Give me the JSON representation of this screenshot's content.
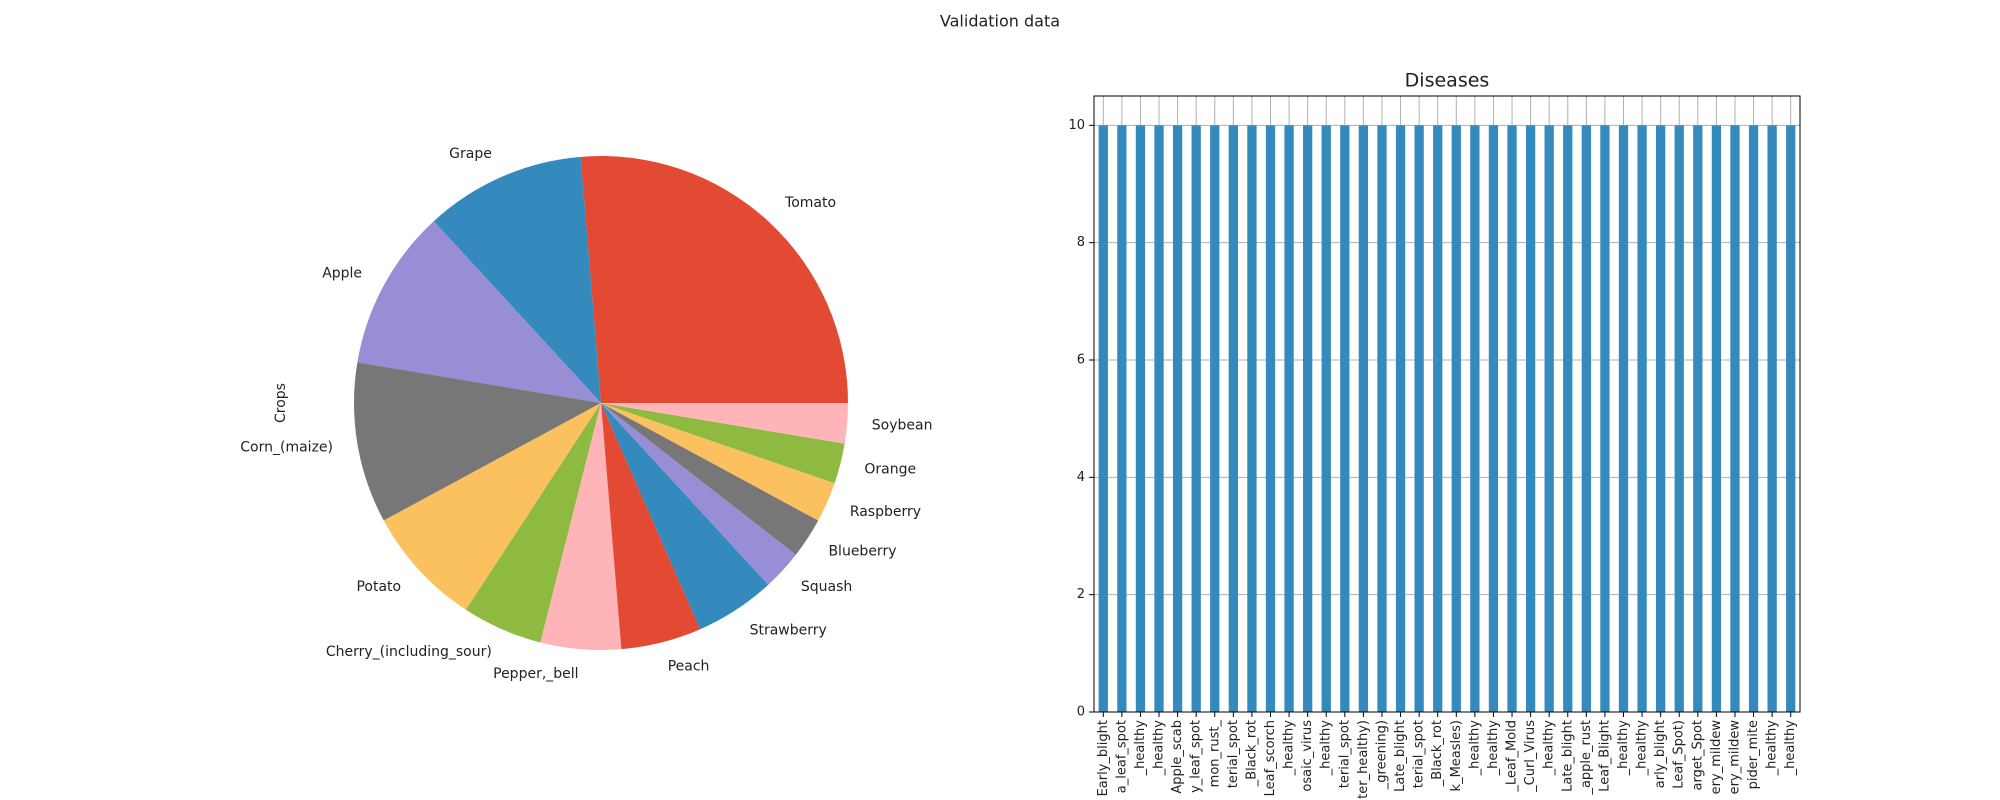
{
  "title": "Validation data",
  "chart_data": [
    {
      "type": "pie",
      "ylabel": "Crops",
      "categories": [
        "Tomato",
        "Grape",
        "Apple",
        "Corn_(maize)",
        "Potato",
        "Cherry_(including_sour)",
        "Pepper,_bell",
        "Peach",
        "Strawberry",
        "Squash",
        "Blueberry",
        "Raspberry",
        "Orange",
        "Soybean"
      ],
      "values": [
        100,
        40,
        40,
        40,
        30,
        20,
        20,
        20,
        20,
        10,
        10,
        10,
        10,
        10
      ],
      "colors": [
        "#E24A33",
        "#348ABD",
        "#988ED5",
        "#777777",
        "#FBC15E",
        "#8EBA42",
        "#FFB5B8",
        "#E24A33",
        "#348ABD",
        "#988ED5",
        "#777777",
        "#FBC15E",
        "#8EBA42",
        "#FFB5B8"
      ]
    },
    {
      "type": "bar",
      "title": "Diseases",
      "categories": [
        "Early_blight",
        "a_leaf_spot",
        "_healthy",
        "_healthy",
        "Apple_scab",
        "y_leaf_spot",
        "mon_rust_",
        "terial_spot",
        "_Black_rot",
        "Leaf_scorch",
        "_healthy",
        "osaic_virus",
        "_healthy",
        "terial_spot",
        "ter_healthy)",
        "_greening)",
        "Late_blight",
        "terial_spot",
        "_Black_rot",
        "k_Measles)",
        "_healthy",
        "_healthy",
        "_Leaf_Mold",
        "_Curl_Virus",
        "_healthy",
        "Late_blight",
        "_apple_rust",
        "Leaf_Blight",
        "_healthy",
        "_healthy",
        "arly_blight",
        "Leaf_Spot)",
        "arget_Spot",
        "ery_mildew",
        "ery_mildew",
        "pider_mite",
        "_healthy",
        "_healthy"
      ],
      "values": [
        10,
        10,
        10,
        10,
        10,
        10,
        10,
        10,
        10,
        10,
        10,
        10,
        10,
        10,
        10,
        10,
        10,
        10,
        10,
        10,
        10,
        10,
        10,
        10,
        10,
        10,
        10,
        10,
        10,
        10,
        10,
        10,
        10,
        10,
        10,
        10,
        10,
        10
      ],
      "color": "#348ABD",
      "ylim": [
        0,
        10.5
      ],
      "yticks": [
        0,
        2,
        4,
        6,
        8,
        10
      ],
      "grid": true
    }
  ]
}
